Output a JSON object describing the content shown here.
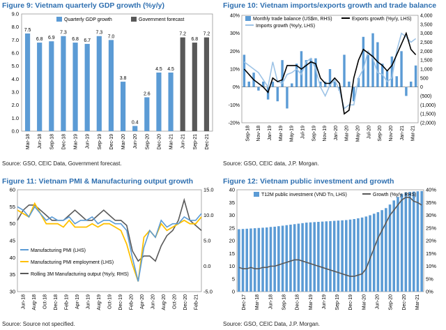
{
  "chart_data": [
    {
      "type": "bar",
      "title": "Figure 9: Vietnam quarterly GDP growth (%y/y)",
      "source": "Source: GSO, CEIC Data, Government forecast.",
      "legend": [
        {
          "name": "Quarterly GDP growth",
          "color": "#5b9bd5"
        },
        {
          "name": "Government forecast",
          "color": "#595959"
        }
      ],
      "categories": [
        "Mar-18",
        "Jun-18",
        "Sep-18",
        "Dec-18",
        "Mar-19",
        "Jun-19",
        "Sep-19",
        "Dec-19",
        "Mar-20",
        "Jun-20",
        "Sep-20",
        "Dec-20",
        "Mar-21",
        "Jun-21",
        "Sep-21",
        "Dec-21"
      ],
      "values": [
        7.5,
        6.8,
        6.9,
        7.3,
        6.8,
        6.7,
        7.3,
        7.0,
        3.8,
        0.4,
        2.6,
        4.5,
        4.5,
        7.2,
        6.8,
        7.2
      ],
      "data_labels": [
        "7.5",
        "6.8",
        "6.9",
        "7.3",
        "6.8",
        "6.7",
        "7.3",
        "7.0",
        "3.8",
        "0.4",
        "2.6",
        "4.5",
        "4.5",
        "7.2",
        "6.8",
        "7.2"
      ],
      "forecast_flags": [
        false,
        false,
        false,
        false,
        false,
        false,
        false,
        false,
        false,
        false,
        false,
        false,
        false,
        true,
        true,
        true
      ],
      "ylim": [
        0,
        9
      ],
      "yticks": [
        "0.0",
        "1.0",
        "2.0",
        "3.0",
        "4.0",
        "5.0",
        "6.0",
        "7.0",
        "8.0",
        "9.0"
      ]
    },
    {
      "type": "bar+line",
      "title": "Figure 10: Vietnam imports/exports growth and trade balance",
      "source": "Source: GSO, CEIC data, J.P. Morgan.",
      "legend": [
        {
          "name": "Monthly trade balance (US$m, RHS)",
          "color": "#5b9bd5"
        },
        {
          "name": "Exports growth (%y/y, LHS)",
          "color": "#000000"
        },
        {
          "name": "Imports growth (%y/y, LHS)",
          "color": "#9dc3e6"
        }
      ],
      "x_ticks": [
        "Sep-18",
        "Nov-18",
        "Jan-19",
        "Mar-19",
        "May-19",
        "Jul-19",
        "Sep-19",
        "Nov-19",
        "Jan-20",
        "Mar-20",
        "May-20",
        "Jul-20",
        "Sep-20",
        "Nov-20",
        "Jan-21",
        "Mar-21"
      ],
      "left_ticks": [
        "-20%",
        "-10%",
        "0%",
        "10%",
        "20%",
        "30%",
        "40%"
      ],
      "right_ticks": [
        "(2,000)",
        "(1,500)",
        "(1,000)",
        "(500)",
        "0",
        "500",
        "1,000",
        "1,500",
        "2,000",
        "2,500",
        "3,000",
        "3,500",
        "4,000"
      ],
      "ylim_left": [
        -20,
        40
      ],
      "ylim_right": [
        -2000,
        4000
      ],
      "trade_balance": [
        1800,
        300,
        800,
        -200,
        300,
        -700,
        300,
        -800,
        1500,
        -1200,
        200,
        1300,
        2000,
        1500,
        1600,
        1600,
        300,
        300,
        1000,
        300,
        -200,
        1800,
        300,
        -800,
        500,
        2800,
        1800,
        3000,
        2500,
        1300,
        900,
        1700,
        600,
        2000,
        -500,
        300,
        1200
      ],
      "exports_growth": [
        10,
        7,
        4,
        2,
        0,
        -3,
        5,
        3,
        4,
        12,
        12,
        12,
        10,
        12,
        14,
        13,
        5,
        2,
        2,
        5,
        2,
        -15,
        -13,
        5,
        15,
        21,
        19,
        17,
        14,
        12,
        9,
        12,
        18,
        24,
        30,
        21,
        18
      ],
      "imports_growth": [
        14,
        12,
        10,
        8,
        4,
        0,
        14,
        3,
        2,
        7,
        8,
        10,
        7,
        14,
        16,
        10,
        0,
        -5,
        1,
        4,
        -2,
        -12,
        -10,
        -10,
        5,
        10,
        20,
        16,
        8,
        7,
        3,
        5,
        20,
        30,
        28,
        25,
        27
      ]
    },
    {
      "type": "line",
      "title": "Figure 11: Vietnam PMI & Manufacturing output growth",
      "source": "Source: Source not specified.",
      "legend": [
        {
          "name": "Manufacturing PMI (LHS)",
          "color": "#5b9bd5"
        },
        {
          "name": "Manufacturing PMI employment (LHS)",
          "color": "#ffc000"
        },
        {
          "name": "Rolling 3M Manufacturing output (%y/y, RHS)",
          "color": "#595959"
        }
      ],
      "x_ticks": [
        "Jun-18",
        "Aug-18",
        "Oct-18",
        "Dec-18",
        "Feb-19",
        "Apr-19",
        "Jun-19",
        "Aug-19",
        "Oct-19",
        "Dec-19",
        "Feb-20",
        "Apr-20",
        "Jun-20",
        "Aug-20",
        "Oct-20",
        "Dec-20",
        "Feb-21"
      ],
      "left_ticks": [
        "30",
        "35",
        "40",
        "45",
        "50",
        "55",
        "60"
      ],
      "right_ticks": [
        "-5.0",
        "0.0",
        "5.0",
        "10.0",
        "15.0"
      ],
      "ylim_left": [
        30,
        60
      ],
      "ylim_right": [
        -5,
        15
      ],
      "pmi": [
        55,
        54,
        52,
        55,
        53,
        51,
        52,
        51,
        51,
        52,
        50,
        51,
        51,
        52,
        50,
        51,
        51,
        50,
        50,
        48,
        40,
        33,
        43,
        48,
        46,
        51,
        49,
        50,
        50,
        52,
        51,
        51,
        53
      ],
      "pmi_employment": [
        54,
        53,
        52,
        56,
        53,
        50,
        50,
        50,
        49,
        51,
        49,
        49,
        49,
        50,
        49,
        50,
        50,
        49,
        48,
        44,
        38,
        33,
        46,
        48,
        46,
        50,
        48,
        49,
        50,
        51,
        50,
        50,
        52
      ],
      "mfg_output": [
        9,
        11,
        12,
        12,
        11,
        10,
        9,
        9,
        9,
        10,
        11,
        10,
        9,
        9,
        10,
        11,
        10,
        9,
        9,
        8,
        3,
        1,
        2,
        2,
        1,
        4,
        6,
        7,
        9,
        13,
        9,
        8,
        7
      ]
    },
    {
      "type": "bar+line",
      "title": "Figure 12: Vietnam public investment and growth",
      "source": "Source: GSO, CEIC Data, J.P. Morgan.",
      "legend": [
        {
          "name": "T12M public investment (VND Tn, LHS)",
          "color": "#5b9bd5"
        },
        {
          "name": "Growth (%y/y, RHS)",
          "color": "#595959"
        }
      ],
      "x_ticks": [
        "Dec-17",
        "Mar-18",
        "Jun-18",
        "Sep-18",
        "Dec-18",
        "Mar-19",
        "Jun-19",
        "Sep-19",
        "Dec-19",
        "Mar-20",
        "Jun-20",
        "Sep-20",
        "Dec-20",
        "Mar-21"
      ],
      "left_ticks": [
        "0",
        "5",
        "10",
        "15",
        "20",
        "25",
        "30",
        "35",
        "40"
      ],
      "right_ticks": [
        "0%",
        "5%",
        "10%",
        "15%",
        "20%",
        "25%",
        "30%",
        "35%",
        "40%"
      ],
      "ylim_left": [
        0,
        40
      ],
      "ylim_right": [
        0,
        40
      ],
      "public_investment": [
        24.5,
        24.6,
        24.7,
        24.8,
        24.9,
        25.0,
        25.1,
        25.2,
        25.4,
        25.5,
        25.7,
        25.9,
        26.1,
        26.3,
        26.5,
        26.7,
        26.9,
        27.1,
        27.2,
        27.3,
        27.4,
        27.5,
        27.6,
        27.7,
        27.8,
        27.9,
        28.0,
        28.1,
        28.3,
        28.5,
        28.8,
        29.1,
        29.5,
        30.0,
        30.6,
        31.2,
        32.0,
        32.8,
        34.2,
        35.8,
        37.2,
        38.4,
        39.0,
        39.2,
        39.3,
        39.4,
        39.5
      ],
      "growth": [
        9.5,
        9,
        9,
        9.5,
        9,
        9,
        9.5,
        9.5,
        10,
        10,
        10.5,
        11,
        11.5,
        12,
        12.5,
        12.5,
        12,
        11.5,
        11,
        10.5,
        10,
        9.5,
        9,
        8.5,
        8,
        7.5,
        7,
        6.5,
        6,
        6,
        6.5,
        7,
        9,
        13,
        17,
        21,
        24,
        27,
        30,
        32,
        34,
        36,
        37,
        37,
        35.5,
        35,
        34
      ]
    }
  ]
}
